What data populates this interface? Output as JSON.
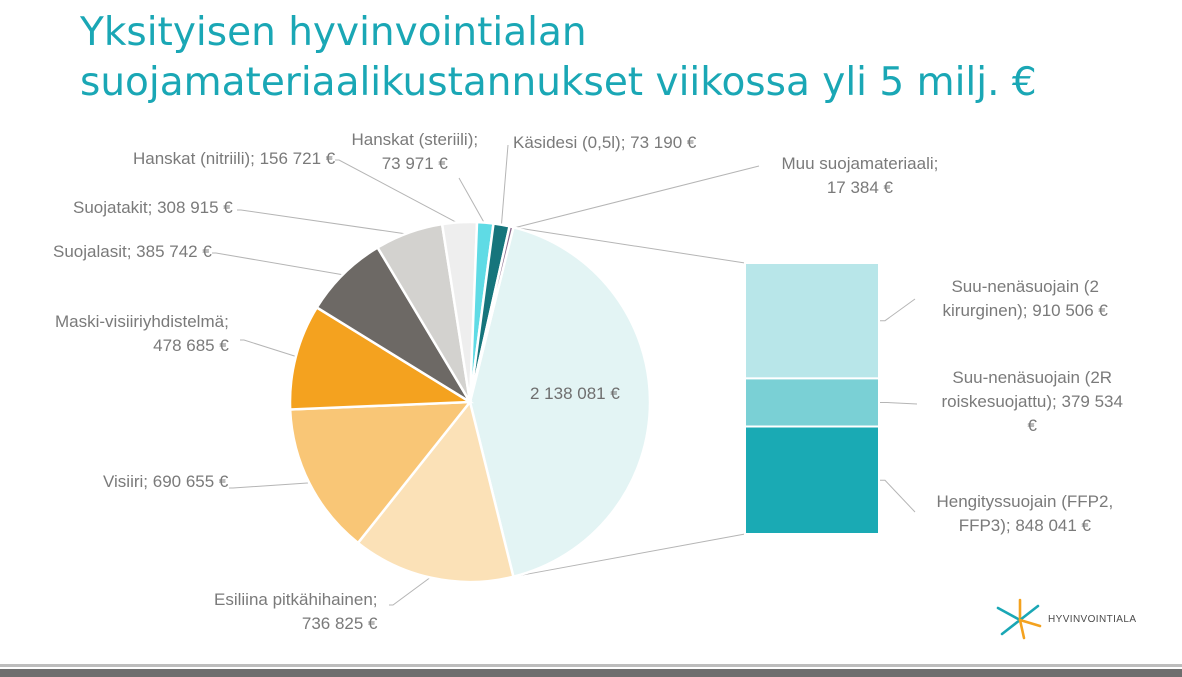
{
  "title": {
    "line1": "Yksityisen hyvinvointialan",
    "line2": "suojamateriaalikustannukset viikossa yli 5 milj. €"
  },
  "chart_data": {
    "type": "bar-of-pie",
    "unit": "€",
    "pie": [
      {
        "label_lines": [
          "",
          "2 138 081 €"
        ],
        "value": 2138081,
        "color": "#e3f4f4"
      },
      {
        "label_lines": [
          "Esiliina pitkähihainen;",
          "736 825 €"
        ],
        "value": 736825,
        "color": "#fbe1b7"
      },
      {
        "label_lines": [
          "Visiiri; 690 655 €"
        ],
        "value": 690655,
        "color": "#f9c676"
      },
      {
        "label_lines": [
          "Maski-visiiriyhdistelmä;",
          "478 685 €"
        ],
        "value": 478685,
        "color": "#f4a21f"
      },
      {
        "label_lines": [
          "Suojalasit; 385 742 €"
        ],
        "value": 385742,
        "color": "#6d6965"
      },
      {
        "label_lines": [
          "Suojatakit; 308 915 €"
        ],
        "value": 308915,
        "color": "#d3d2cf"
      },
      {
        "label_lines": [
          "Hanskat (nitriili); 156 721 €"
        ],
        "value": 156721,
        "color": "#eeeeee"
      },
      {
        "label_lines": [
          "Hanskat (steriili);",
          "73 971 €"
        ],
        "value": 73971,
        "color": "#5fdbe5"
      },
      {
        "label_lines": [
          "Käsidesi (0,5l); 73 190 €"
        ],
        "value": 73190,
        "color": "#16757c"
      },
      {
        "label_lines": [
          "Muu suojamateriaali;",
          "17 384 €"
        ],
        "value": 17384,
        "color": "#8a6a8c"
      }
    ],
    "bar": [
      {
        "label_lines": [
          "Suu-nenäsuojain (2",
          "kirurginen); 910 506 €"
        ],
        "value": 910506,
        "color": "#b8e6e9"
      },
      {
        "label_lines": [
          "Suu-nenäsuojain (2R",
          "roiskesuojattu); 379 534",
          "€"
        ],
        "value": 379534,
        "color": "#7ad0d5"
      },
      {
        "label_lines": [
          "Hengityssuojain (FFP2,",
          "FFP3); 848 041 €"
        ],
        "value": 848041,
        "color": "#1aaab4"
      }
    ]
  },
  "logo": {
    "text": "HYVINVOINTIALA"
  }
}
